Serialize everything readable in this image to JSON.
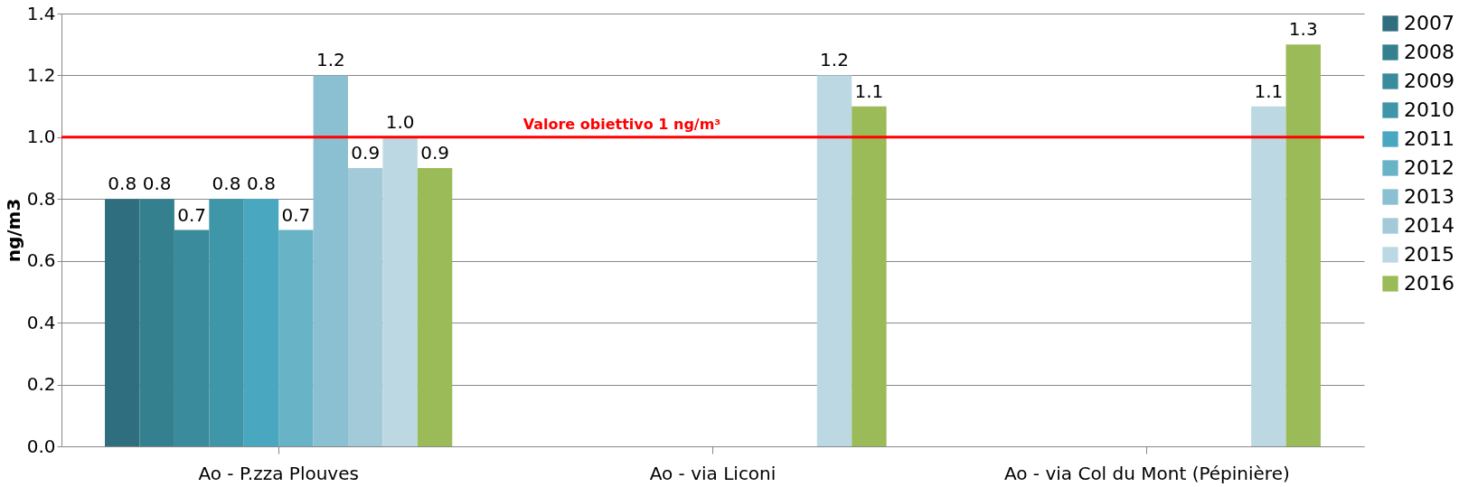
{
  "chart_data": {
    "type": "bar",
    "ylabel": "ng/m3",
    "categories": [
      "Ao - P.zza Plouves",
      "Ao - via Liconi",
      "Ao - via Col du Mont (Pépinière)"
    ],
    "series": [
      {
        "name": "2007",
        "color": "#2e6e7e",
        "values": [
          0.8,
          null,
          null
        ],
        "value_labels": [
          "0.8",
          null,
          null
        ]
      },
      {
        "name": "2008",
        "color": "#34808f",
        "values": [
          0.8,
          null,
          null
        ],
        "value_labels": [
          "0.8",
          null,
          null
        ]
      },
      {
        "name": "2009",
        "color": "#3a8b9b",
        "values": [
          0.7,
          null,
          null
        ],
        "value_labels": [
          "0.7",
          null,
          null
        ]
      },
      {
        "name": "2010",
        "color": "#3f96a8",
        "values": [
          0.8,
          null,
          null
        ],
        "value_labels": [
          "0.8",
          null,
          null
        ]
      },
      {
        "name": "2011",
        "color": "#4aa7c0",
        "values": [
          0.8,
          null,
          null
        ],
        "value_labels": [
          "0.8",
          null,
          null
        ]
      },
      {
        "name": "2012",
        "color": "#69b3c7",
        "values": [
          0.7,
          null,
          null
        ],
        "value_labels": [
          "0.7",
          null,
          null
        ]
      },
      {
        "name": "2013",
        "color": "#8bc0d2",
        "values": [
          1.2,
          null,
          null
        ],
        "value_labels": [
          "1.2",
          null,
          null
        ]
      },
      {
        "name": "2014",
        "color": "#a3cad8",
        "values": [
          0.9,
          null,
          null
        ],
        "value_labels": [
          "0.9",
          null,
          null
        ]
      },
      {
        "name": "2015",
        "color": "#bcd9e3",
        "values": [
          1.0,
          1.2,
          1.1
        ],
        "value_labels": [
          "1.0",
          "1.2",
          "1.1"
        ]
      },
      {
        "name": "2016",
        "color": "#9bbb59",
        "values": [
          0.9,
          1.1,
          1.3
        ],
        "value_labels": [
          "0.9",
          "1.1",
          "1.3"
        ]
      }
    ],
    "ylim": [
      0,
      1.4
    ],
    "yticks": [
      {
        "value": 0,
        "label": "0.0"
      },
      0.2,
      0.4,
      0.6,
      0.8,
      {
        "value": 1,
        "label": "1.0"
      },
      1.2,
      1.4
    ],
    "ref_lines": [
      {
        "axis": "y",
        "value": 1,
        "label": "Valore obiettivo 1 ng/m³",
        "color": "#ff0000"
      }
    ],
    "grid": "y",
    "legend": "right"
  }
}
